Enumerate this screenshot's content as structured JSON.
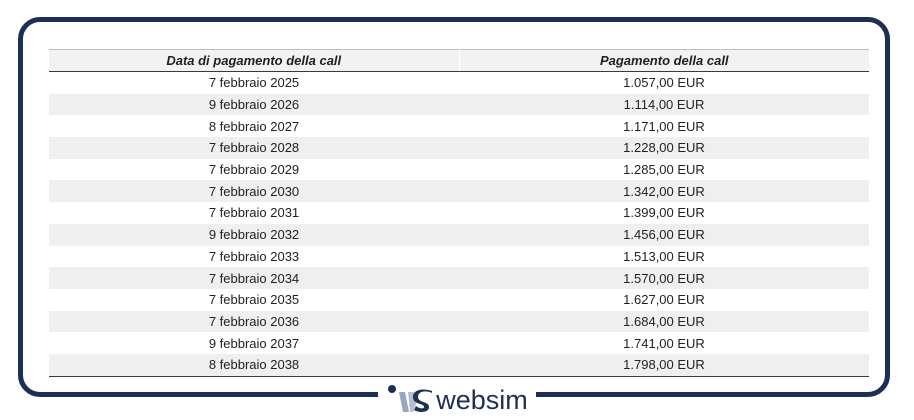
{
  "table": {
    "headers": [
      "Data di pagamento della call",
      "Pagamento della call"
    ],
    "rows": [
      [
        "7 febbraio 2025",
        "1.057,00 EUR"
      ],
      [
        "9 febbraio 2026",
        "1.114,00 EUR"
      ],
      [
        "8 febbraio 2027",
        "1.171,00 EUR"
      ],
      [
        "7 febbraio 2028",
        "1.228,00 EUR"
      ],
      [
        "7 febbraio 2029",
        "1.285,00 EUR"
      ],
      [
        "7 febbraio 2030",
        "1.342,00 EUR"
      ],
      [
        "7 febbraio 2031",
        "1.399,00 EUR"
      ],
      [
        "9 febbraio 2032",
        "1.456,00 EUR"
      ],
      [
        "7 febbraio 2033",
        "1.513,00 EUR"
      ],
      [
        "7 febbraio 2034",
        "1.570,00 EUR"
      ],
      [
        "7 febbraio 2035",
        "1.627,00 EUR"
      ],
      [
        "7 febbraio 2036",
        "1.684,00 EUR"
      ],
      [
        "9 febbraio 2037",
        "1.741,00 EUR"
      ],
      [
        "8 febbraio 2038",
        "1.798,00 EUR"
      ]
    ]
  },
  "brand": {
    "name": "websim",
    "logo_icon": "websim-logo-icon",
    "color": "#1c3055"
  }
}
